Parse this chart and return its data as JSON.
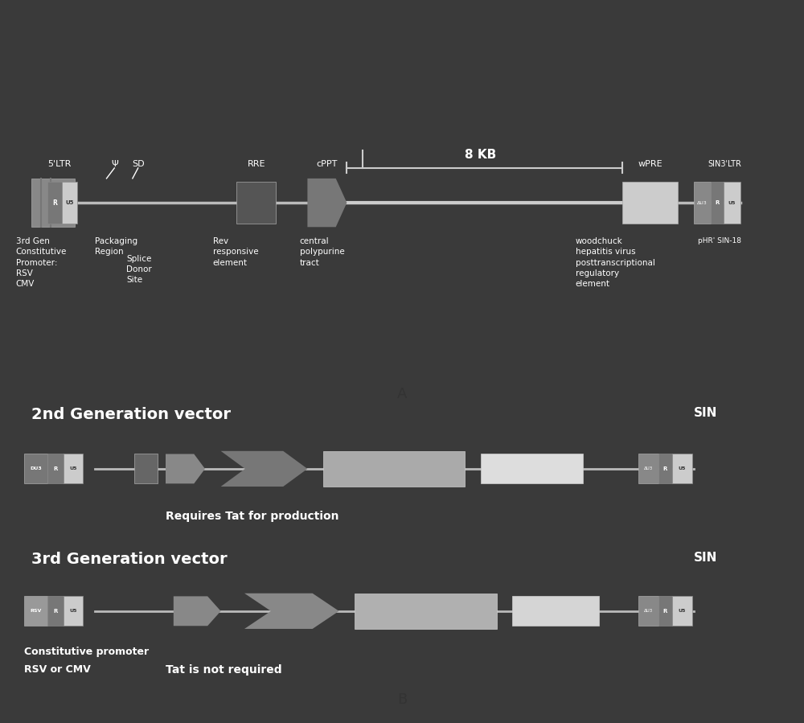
{
  "bg_color": "#3a3a3a",
  "panel_bg": "#4a4a4a",
  "fig_width": 10.0,
  "fig_height": 8.99,
  "label_A": "A",
  "label_B": "B",
  "panel_A": {
    "label_5ltr": "5'LTR",
    "label_psi": "Ψ",
    "label_sd": "SD",
    "label_rre": "RRE",
    "label_cppt": "cPPT",
    "label_wpre": "wPRE",
    "label_sin3ltr": "SIN3'LTR",
    "label_8kb": "8 KB",
    "desc_left": "3rd Gen\nConstitutive\nPromoter:\nRSV\nCMV",
    "desc_pack": "Packaging\nRegion",
    "desc_splice": "Splice\nDonor\nSite",
    "desc_rev": "Rev\nresponsive\nelement",
    "desc_central": "central\npolypurine\ntract",
    "desc_woodchuck": "woodchuck\nhepatitis virus\nposttranscriptional\nregulatory\nelement",
    "desc_phr": "pHR' SIN-18"
  },
  "panel_B": {
    "gen2_title": "2nd Generation vector",
    "gen2_sin": "SIN",
    "gen2_note": "Requires Tat for production",
    "gen3_title": "3rd Generation vector",
    "gen3_sin": "SIN",
    "gen3_note1": "Constitutive promoter",
    "gen3_note2": "RSV or CMV",
    "gen3_note3": "Tat is not required"
  }
}
